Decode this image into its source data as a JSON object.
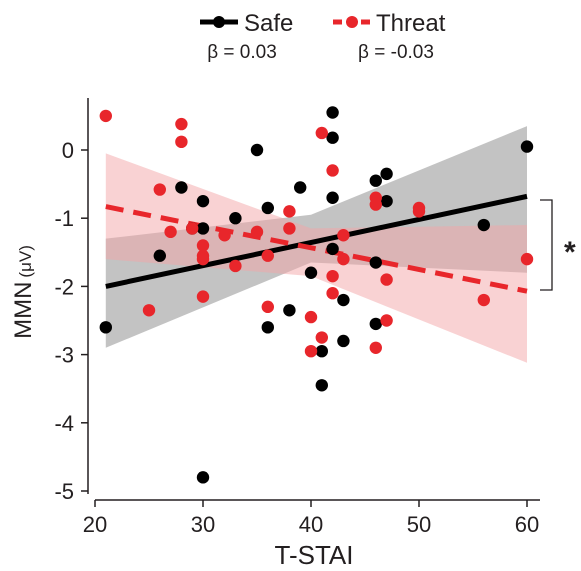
{
  "chart_data": {
    "type": "scatter",
    "xlabel": "T-STAI",
    "ylabel": "MMN",
    "ylabel_unit": "(μV)",
    "xlim": [
      20,
      62
    ],
    "ylim": [
      -5.1,
      0.8
    ],
    "xticks": [
      20,
      30,
      40,
      50,
      60
    ],
    "yticks": [
      -5,
      -4,
      -3,
      -2,
      -1,
      0
    ],
    "grid": false,
    "legend_position": "top",
    "significance_marker": "*",
    "series": [
      {
        "name": "Safe",
        "beta_label": "β = 0.03",
        "color": "#000000",
        "band_color": "#888888",
        "line_style": "solid",
        "fit": {
          "x": [
            21,
            60
          ],
          "y": [
            -2.0,
            -0.68
          ]
        },
        "band": {
          "x": [
            21,
            40,
            60
          ],
          "upper": [
            -1.3,
            -0.95,
            0.35
          ],
          "lower": [
            -2.9,
            -1.65,
            -1.8
          ]
        },
        "x": [
          21,
          26,
          28,
          29,
          30,
          30,
          33,
          35,
          36,
          36,
          38,
          39,
          40,
          41,
          41,
          42,
          42,
          42,
          42,
          43,
          43,
          46,
          46,
          46,
          47,
          47,
          56,
          60,
          30
        ],
        "y": [
          -2.6,
          -1.55,
          -0.55,
          -1.15,
          -0.75,
          -1.15,
          -1.0,
          0.0,
          -0.85,
          -2.6,
          -2.35,
          -0.55,
          -1.8,
          -2.95,
          -3.45,
          0.55,
          0.18,
          -0.7,
          -1.45,
          -2.2,
          -2.8,
          -0.45,
          -1.65,
          -2.55,
          -0.35,
          -0.75,
          -1.1,
          0.05,
          -4.8
        ]
      },
      {
        "name": "Threat",
        "beta_label": "β = -0.03",
        "color": "#e8262b",
        "band_color": "#f4a6a8",
        "line_style": "dashed",
        "fit": {
          "x": [
            21,
            60
          ],
          "y": [
            -0.83,
            -2.07
          ]
        },
        "band": {
          "x": [
            21,
            40,
            60
          ],
          "upper": [
            -0.05,
            -1.15,
            -1.1
          ],
          "lower": [
            -1.6,
            -1.85,
            -3.12
          ]
        },
        "x": [
          21,
          25,
          26,
          27,
          28,
          28,
          29,
          30,
          30,
          30,
          32,
          33,
          35,
          36,
          36,
          38,
          38,
          40,
          40,
          41,
          41,
          42,
          42,
          42,
          43,
          43,
          46,
          46,
          46,
          47,
          47,
          50,
          50,
          56,
          60,
          30
        ],
        "y": [
          0.5,
          -2.35,
          -0.58,
          -1.2,
          0.12,
          0.38,
          -1.15,
          -1.4,
          -1.55,
          -2.15,
          -1.25,
          -1.7,
          -1.2,
          -1.55,
          -2.3,
          -0.9,
          -1.15,
          -2.45,
          -2.95,
          0.25,
          -2.75,
          -0.3,
          -1.85,
          -2.1,
          -1.25,
          -1.6,
          -0.7,
          -0.8,
          -2.9,
          -1.9,
          -2.5,
          -0.85,
          -0.9,
          -2.2,
          -1.6,
          -1.6
        ]
      }
    ]
  }
}
